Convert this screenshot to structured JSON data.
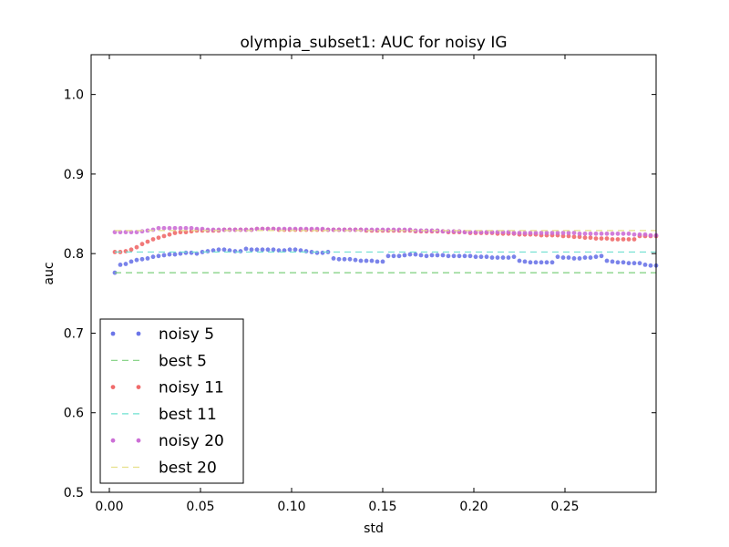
{
  "chart_data": {
    "type": "scatter",
    "title": "olympia_subset1: AUC for noisy IG",
    "xlabel": "std",
    "ylabel": "auc",
    "xlim": [
      -0.01,
      0.3
    ],
    "ylim": [
      0.5,
      1.05
    ],
    "xticks": [
      0.0,
      0.05,
      0.1,
      0.15,
      0.2,
      0.25
    ],
    "xtick_labels": [
      "0.00",
      "0.05",
      "0.10",
      "0.15",
      "0.20",
      "0.25"
    ],
    "yticks": [
      0.5,
      0.6,
      0.7,
      0.8,
      0.9,
      1.0
    ],
    "ytick_labels": [
      "0.5",
      "0.6",
      "0.7",
      "0.8",
      "0.9",
      "1.0"
    ],
    "grid": false,
    "legend_position": "lower-left",
    "series": [
      {
        "name": "noisy 5",
        "style": "dots",
        "color": "#6b75e8",
        "x": [
          0.003,
          0.006,
          0.009,
          0.012,
          0.015,
          0.018,
          0.021,
          0.024,
          0.027,
          0.03,
          0.033,
          0.036,
          0.039,
          0.042,
          0.045,
          0.048,
          0.051,
          0.054,
          0.057,
          0.06,
          0.063,
          0.066,
          0.069,
          0.072,
          0.075,
          0.078,
          0.081,
          0.084,
          0.087,
          0.09,
          0.093,
          0.096,
          0.099,
          0.102,
          0.105,
          0.108,
          0.111,
          0.114,
          0.117,
          0.12,
          0.123,
          0.126,
          0.129,
          0.132,
          0.135,
          0.138,
          0.141,
          0.144,
          0.147,
          0.15,
          0.153,
          0.156,
          0.159,
          0.162,
          0.165,
          0.168,
          0.171,
          0.174,
          0.177,
          0.18,
          0.183,
          0.186,
          0.189,
          0.192,
          0.195,
          0.198,
          0.201,
          0.204,
          0.207,
          0.21,
          0.213,
          0.216,
          0.219,
          0.222,
          0.225,
          0.228,
          0.231,
          0.234,
          0.237,
          0.24,
          0.243,
          0.246,
          0.249,
          0.252,
          0.255,
          0.258,
          0.261,
          0.264,
          0.267,
          0.27,
          0.273,
          0.276,
          0.279,
          0.282,
          0.285,
          0.288,
          0.291,
          0.294,
          0.297,
          0.3
        ],
        "y": [
          0.776,
          0.786,
          0.787,
          0.79,
          0.792,
          0.793,
          0.794,
          0.796,
          0.797,
          0.798,
          0.799,
          0.799,
          0.8,
          0.801,
          0.801,
          0.8,
          0.802,
          0.803,
          0.804,
          0.805,
          0.805,
          0.804,
          0.803,
          0.803,
          0.806,
          0.805,
          0.805,
          0.805,
          0.805,
          0.805,
          0.804,
          0.804,
          0.805,
          0.805,
          0.804,
          0.803,
          0.802,
          0.801,
          0.801,
          0.802,
          0.794,
          0.793,
          0.793,
          0.793,
          0.792,
          0.791,
          0.791,
          0.791,
          0.79,
          0.79,
          0.797,
          0.797,
          0.797,
          0.798,
          0.799,
          0.799,
          0.798,
          0.797,
          0.798,
          0.798,
          0.798,
          0.797,
          0.797,
          0.797,
          0.797,
          0.797,
          0.796,
          0.796,
          0.796,
          0.795,
          0.795,
          0.795,
          0.795,
          0.796,
          0.791,
          0.79,
          0.789,
          0.789,
          0.789,
          0.789,
          0.789,
          0.796,
          0.795,
          0.795,
          0.794,
          0.794,
          0.795,
          0.795,
          0.796,
          0.797,
          0.791,
          0.79,
          0.789,
          0.789,
          0.788,
          0.788,
          0.788,
          0.786,
          0.785,
          0.785
        ]
      },
      {
        "name": "best 5",
        "style": "dashed",
        "color": "#7ccf7c",
        "x": [
          0.003,
          0.3
        ],
        "y": [
          0.776,
          0.776
        ]
      },
      {
        "name": "noisy 11",
        "style": "dots",
        "color": "#f06a6a",
        "x": [
          0.003,
          0.006,
          0.009,
          0.012,
          0.015,
          0.018,
          0.021,
          0.024,
          0.027,
          0.03,
          0.033,
          0.036,
          0.039,
          0.042,
          0.045,
          0.048,
          0.051,
          0.054,
          0.057,
          0.06,
          0.063,
          0.066,
          0.069,
          0.072,
          0.075,
          0.078,
          0.081,
          0.084,
          0.087,
          0.09,
          0.093,
          0.096,
          0.099,
          0.102,
          0.105,
          0.108,
          0.111,
          0.114,
          0.117,
          0.12,
          0.123,
          0.126,
          0.129,
          0.132,
          0.135,
          0.138,
          0.141,
          0.144,
          0.147,
          0.15,
          0.153,
          0.156,
          0.159,
          0.162,
          0.165,
          0.168,
          0.171,
          0.174,
          0.177,
          0.18,
          0.183,
          0.186,
          0.189,
          0.192,
          0.195,
          0.198,
          0.201,
          0.204,
          0.207,
          0.21,
          0.213,
          0.216,
          0.219,
          0.222,
          0.225,
          0.228,
          0.231,
          0.234,
          0.237,
          0.24,
          0.243,
          0.246,
          0.249,
          0.252,
          0.255,
          0.258,
          0.261,
          0.264,
          0.267,
          0.27,
          0.273,
          0.276,
          0.279,
          0.282,
          0.285,
          0.288,
          0.291,
          0.294,
          0.297,
          0.3
        ],
        "y": [
          0.802,
          0.802,
          0.803,
          0.805,
          0.808,
          0.812,
          0.815,
          0.818,
          0.82,
          0.822,
          0.824,
          0.826,
          0.827,
          0.827,
          0.828,
          0.829,
          0.829,
          0.829,
          0.829,
          0.829,
          0.83,
          0.83,
          0.83,
          0.83,
          0.83,
          0.83,
          0.831,
          0.831,
          0.831,
          0.831,
          0.83,
          0.83,
          0.83,
          0.83,
          0.83,
          0.83,
          0.83,
          0.83,
          0.83,
          0.83,
          0.83,
          0.83,
          0.83,
          0.83,
          0.83,
          0.83,
          0.829,
          0.829,
          0.829,
          0.829,
          0.829,
          0.829,
          0.829,
          0.829,
          0.829,
          0.828,
          0.828,
          0.828,
          0.828,
          0.828,
          0.828,
          0.827,
          0.827,
          0.827,
          0.827,
          0.826,
          0.826,
          0.826,
          0.826,
          0.826,
          0.825,
          0.825,
          0.825,
          0.825,
          0.824,
          0.824,
          0.824,
          0.824,
          0.823,
          0.823,
          0.823,
          0.823,
          0.822,
          0.822,
          0.821,
          0.821,
          0.82,
          0.82,
          0.819,
          0.819,
          0.819,
          0.818,
          0.818,
          0.818,
          0.818,
          0.818,
          0.822,
          0.822,
          0.822,
          0.822
        ]
      },
      {
        "name": "best 11",
        "style": "dashed",
        "color": "#6fe0d0",
        "x": [
          0.003,
          0.3
        ],
        "y": [
          0.802,
          0.802
        ]
      },
      {
        "name": "noisy 20",
        "style": "dots",
        "color": "#cc6fd6",
        "x": [
          0.003,
          0.006,
          0.009,
          0.012,
          0.015,
          0.018,
          0.021,
          0.024,
          0.027,
          0.03,
          0.033,
          0.036,
          0.039,
          0.042,
          0.045,
          0.048,
          0.051,
          0.054,
          0.057,
          0.06,
          0.063,
          0.066,
          0.069,
          0.072,
          0.075,
          0.078,
          0.081,
          0.084,
          0.087,
          0.09,
          0.093,
          0.096,
          0.099,
          0.102,
          0.105,
          0.108,
          0.111,
          0.114,
          0.117,
          0.12,
          0.123,
          0.126,
          0.129,
          0.132,
          0.135,
          0.138,
          0.141,
          0.144,
          0.147,
          0.15,
          0.153,
          0.156,
          0.159,
          0.162,
          0.165,
          0.168,
          0.171,
          0.174,
          0.177,
          0.18,
          0.183,
          0.186,
          0.189,
          0.192,
          0.195,
          0.198,
          0.201,
          0.204,
          0.207,
          0.21,
          0.213,
          0.216,
          0.219,
          0.222,
          0.225,
          0.228,
          0.231,
          0.234,
          0.237,
          0.24,
          0.243,
          0.246,
          0.249,
          0.252,
          0.255,
          0.258,
          0.261,
          0.264,
          0.267,
          0.27,
          0.273,
          0.276,
          0.279,
          0.282,
          0.285,
          0.288,
          0.291,
          0.294,
          0.297,
          0.3
        ],
        "y": [
          0.827,
          0.827,
          0.827,
          0.827,
          0.827,
          0.828,
          0.829,
          0.83,
          0.832,
          0.832,
          0.832,
          0.832,
          0.832,
          0.832,
          0.832,
          0.831,
          0.831,
          0.83,
          0.83,
          0.83,
          0.83,
          0.83,
          0.83,
          0.83,
          0.83,
          0.83,
          0.831,
          0.831,
          0.831,
          0.831,
          0.831,
          0.831,
          0.831,
          0.831,
          0.831,
          0.831,
          0.831,
          0.831,
          0.831,
          0.83,
          0.83,
          0.83,
          0.83,
          0.83,
          0.83,
          0.83,
          0.83,
          0.83,
          0.83,
          0.83,
          0.83,
          0.83,
          0.83,
          0.83,
          0.83,
          0.829,
          0.829,
          0.829,
          0.829,
          0.829,
          0.828,
          0.828,
          0.828,
          0.828,
          0.827,
          0.827,
          0.827,
          0.827,
          0.827,
          0.827,
          0.827,
          0.827,
          0.827,
          0.826,
          0.826,
          0.826,
          0.826,
          0.826,
          0.826,
          0.826,
          0.826,
          0.826,
          0.826,
          0.826,
          0.826,
          0.825,
          0.825,
          0.825,
          0.825,
          0.825,
          0.825,
          0.825,
          0.825,
          0.825,
          0.825,
          0.824,
          0.824,
          0.824,
          0.823,
          0.823
        ]
      },
      {
        "name": "best 20",
        "style": "dashed",
        "color": "#e6e08a",
        "x": [
          0.003,
          0.3
        ],
        "y": [
          0.829,
          0.829
        ]
      }
    ]
  }
}
